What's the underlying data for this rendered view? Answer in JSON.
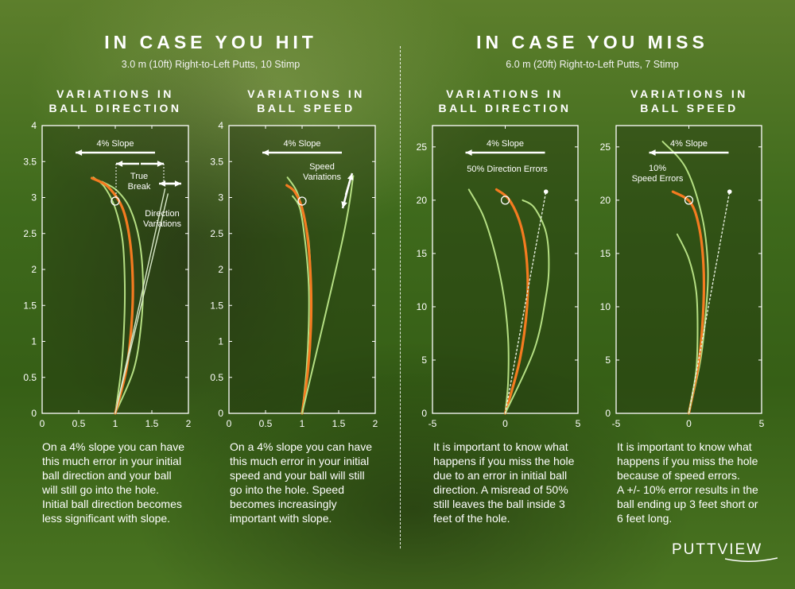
{
  "headers": {
    "hit": {
      "title": "IN CASE YOU HIT",
      "subtitle": "3.0 m (10ft) Right-to-Left Putts, 10 Stimp"
    },
    "miss": {
      "title": "IN CASE YOU MISS",
      "subtitle": "6.0 m (20ft) Right-to-Left Putts, 7 Stimp"
    }
  },
  "panels": [
    {
      "title_line1": "VARIATIONS IN",
      "title_line2": "BALL DIRECTION",
      "desc_lines": [
        "On a 4% slope you can have",
        "this much error in your initial",
        "ball direction and your ball",
        "will still go into the hole.",
        "Initial ball direction becomes",
        "less significant with slope."
      ]
    },
    {
      "title_line1": "VARIATIONS IN",
      "title_line2": "BALL SPEED",
      "desc_lines": [
        "On a 4% slope you can have",
        "this much error in your initial",
        "speed and your ball will still",
        "go into the hole. Speed",
        "becomes increasingly",
        "important with slope."
      ]
    },
    {
      "title_line1": "VARIATIONS IN",
      "title_line2": "BALL DIRECTION",
      "desc_lines": [
        "It is important to know what",
        "happens if you miss the hole",
        "due to an error in initial ball",
        "direction. A misread of 50%",
        "still leaves the ball inside 3",
        "feet of the hole."
      ]
    },
    {
      "title_line1": "VARIATIONS IN",
      "title_line2": "BALL SPEED",
      "desc_lines": [
        "It is important to know what",
        "happens if you miss the hole",
        "because of speed errors.",
        "A +/- 10% error results in the",
        "ball ending up 3 feet short or",
        "6 feet long."
      ]
    }
  ],
  "colors": {
    "accent_orange": "#f47b20",
    "variation_green": "#b5df83",
    "white": "#ffffff"
  },
  "logo": "PUTTVIEW",
  "chart_data": [
    {
      "type": "line",
      "xlim": [
        0,
        2
      ],
      "ylim": [
        0,
        4
      ],
      "xticks": [
        "0",
        "0.5",
        "1",
        "1.5",
        "2"
      ],
      "yticks": [
        "0",
        "0.5",
        "1",
        "1.5",
        "2",
        "2.5",
        "3",
        "3.5",
        "4"
      ],
      "annotations": [
        "4% Slope",
        "True Break",
        "Direction Variations"
      ],
      "hole": [
        1.0,
        2.95
      ],
      "series": [
        {
          "color": "#b5df83",
          "points": [
            [
              1.0,
              0
            ],
            [
              1.08,
              0.6
            ],
            [
              1.12,
              1.2
            ],
            [
              1.13,
              1.8
            ],
            [
              1.1,
              2.4
            ],
            [
              1.0,
              2.85
            ],
            [
              0.85,
              3.15
            ],
            [
              0.7,
              3.28
            ]
          ]
        },
        {
          "color": "#b5df83",
          "points": [
            [
              1.0,
              0
            ],
            [
              1.25,
              0.6
            ],
            [
              1.35,
              1.2
            ],
            [
              1.38,
              1.8
            ],
            [
              1.33,
              2.4
            ],
            [
              1.2,
              2.85
            ],
            [
              1.02,
              3.1
            ],
            [
              0.82,
              3.22
            ]
          ]
        },
        {
          "color": "#f47b20",
          "points": [
            [
              1.0,
              0
            ],
            [
              1.15,
              0.6
            ],
            [
              1.22,
              1.2
            ],
            [
              1.24,
              1.8
            ],
            [
              1.2,
              2.4
            ],
            [
              1.1,
              2.85
            ],
            [
              0.9,
              3.15
            ],
            [
              0.68,
              3.27
            ]
          ]
        },
        {
          "color": "#d8e8c8",
          "points": [
            [
              1.0,
              0
            ],
            [
              1.68,
              3.12
            ]
          ]
        },
        {
          "color": "#d8e8c8",
          "points": [
            [
              1.0,
              0
            ],
            [
              1.72,
              3.05
            ]
          ]
        }
      ]
    },
    {
      "type": "line",
      "xlim": [
        0,
        2
      ],
      "ylim": [
        0,
        4
      ],
      "xticks": [
        "0",
        "0.5",
        "1",
        "1.5",
        "2"
      ],
      "yticks": [
        "0",
        "0.5",
        "1",
        "1.5",
        "2",
        "2.5",
        "3",
        "3.5",
        "4"
      ],
      "annotations": [
        "4% Slope",
        "Speed Variations"
      ],
      "hole": [
        1.0,
        2.95
      ],
      "series": [
        {
          "color": "#b5df83",
          "points": [
            [
              1.0,
              0
            ],
            [
              1.08,
              0.6
            ],
            [
              1.12,
              1.2
            ],
            [
              1.12,
              1.8
            ],
            [
              1.09,
              2.4
            ],
            [
              1.0,
              2.85
            ],
            [
              0.92,
              3.1
            ],
            [
              0.8,
              3.28
            ]
          ]
        },
        {
          "color": "#b5df83",
          "points": [
            [
              1.0,
              0
            ],
            [
              1.06,
              0.6
            ],
            [
              1.09,
              1.2
            ],
            [
              1.09,
              1.8
            ],
            [
              1.04,
              2.4
            ],
            [
              0.97,
              2.85
            ],
            [
              0.87,
              3.02
            ]
          ]
        },
        {
          "color": "#f47b20",
          "points": [
            [
              1.0,
              0
            ],
            [
              1.08,
              0.6
            ],
            [
              1.12,
              1.2
            ],
            [
              1.12,
              1.8
            ],
            [
              1.08,
              2.4
            ],
            [
              1.0,
              2.85
            ],
            [
              0.9,
              3.08
            ],
            [
              0.79,
              3.17
            ]
          ]
        },
        {
          "color": "#b5df83",
          "points": [
            [
              1.0,
              0
            ],
            [
              1.55,
              2.4
            ],
            [
              1.7,
              3.3
            ]
          ]
        }
      ]
    },
    {
      "type": "line",
      "xlim": [
        -5,
        5
      ],
      "ylim": [
        0,
        27
      ],
      "xticks": [
        "-5",
        "0",
        "5"
      ],
      "yticks": [
        "0",
        "5",
        "10",
        "15",
        "20",
        "25"
      ],
      "annotations": [
        "4% Slope",
        "50% Direction Errors"
      ],
      "hole": [
        0,
        20
      ],
      "series": [
        {
          "color": "#b5df83",
          "points": [
            [
              0,
              0
            ],
            [
              0.2,
              3
            ],
            [
              0.2,
              7
            ],
            [
              -0.1,
              11
            ],
            [
              -0.7,
              15
            ],
            [
              -1.5,
              18.5
            ],
            [
              -2.5,
              21
            ]
          ]
        },
        {
          "color": "#f47b20",
          "points": [
            [
              0,
              0
            ],
            [
              1.0,
              5
            ],
            [
              1.5,
              10
            ],
            [
              1.5,
              14
            ],
            [
              1.1,
              17.5
            ],
            [
              0.3,
              20
            ],
            [
              -0.6,
              21
            ]
          ]
        },
        {
          "color": "#b5df83",
          "points": [
            [
              0,
              0
            ],
            [
              2.0,
              6
            ],
            [
              2.8,
              11
            ],
            [
              3.0,
              14
            ],
            [
              2.8,
              17
            ],
            [
              2.0,
              19.3
            ],
            [
              1.2,
              20
            ]
          ]
        },
        {
          "color": "#e8f0e0",
          "dashed": true,
          "points": [
            [
              0,
              0
            ],
            [
              2.8,
              20.8
            ]
          ]
        }
      ]
    },
    {
      "type": "line",
      "xlim": [
        -5,
        5
      ],
      "ylim": [
        0,
        27
      ],
      "xticks": [
        "-5",
        "0",
        "5"
      ],
      "yticks": [
        "0",
        "5",
        "10",
        "15",
        "20",
        "25"
      ],
      "annotations": [
        "4% Slope",
        "10% Speed Errors"
      ],
      "hole": [
        0,
        20
      ],
      "series": [
        {
          "color": "#b5df83",
          "points": [
            [
              0,
              0
            ],
            [
              0.8,
              5
            ],
            [
              1.2,
              10
            ],
            [
              1.3,
              14
            ],
            [
              0.9,
              18.5
            ],
            [
              -0.2,
              23
            ],
            [
              -1.8,
              25.5
            ]
          ]
        },
        {
          "color": "#f47b20",
          "points": [
            [
              0,
              0
            ],
            [
              0.7,
              5
            ],
            [
              1.0,
              10
            ],
            [
              1.0,
              14
            ],
            [
              0.7,
              17.5
            ],
            [
              0.1,
              19.8
            ],
            [
              -1.1,
              20.8
            ]
          ]
        },
        {
          "color": "#b5df83",
          "points": [
            [
              0,
              0
            ],
            [
              0.5,
              4
            ],
            [
              0.6,
              8
            ],
            [
              0.5,
              11.5
            ],
            [
              0,
              14.5
            ],
            [
              -0.8,
              16.8
            ]
          ]
        },
        {
          "color": "#e8f0e0",
          "dashed": true,
          "points": [
            [
              0,
              0
            ],
            [
              2.8,
              20.8
            ]
          ]
        }
      ]
    }
  ]
}
